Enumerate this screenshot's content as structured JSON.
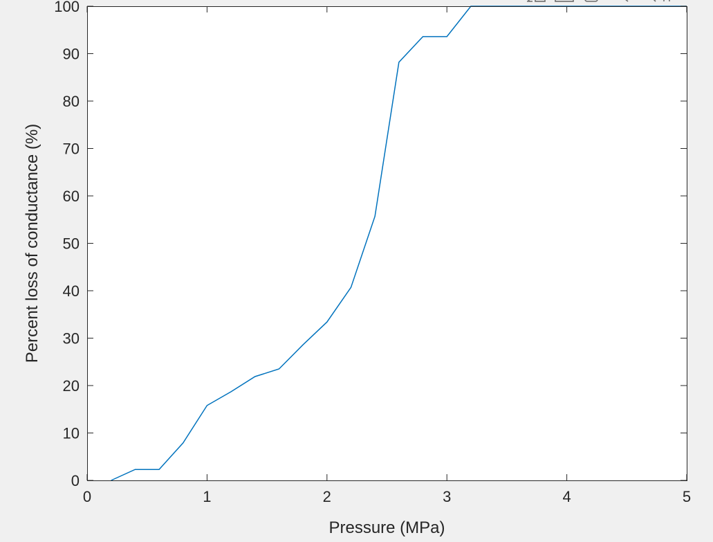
{
  "colors": {
    "figure_background": "#f0f0f0",
    "axes_background": "#ffffff",
    "axes_color": "#262626",
    "series_color": "#0072bd"
  },
  "toolbar": {
    "icons": [
      "data-cursor-icon",
      "save-icon",
      "copy-icon",
      "zoom-in-icon",
      "zoom-out-icon",
      "pan-icon"
    ]
  },
  "chart_data": {
    "type": "line",
    "title": "",
    "xlabel": "Pressure (MPa)",
    "ylabel": "Percent loss of conductance (%)",
    "xlim": [
      0,
      5
    ],
    "ylim": [
      0,
      100
    ],
    "xticks": [
      0,
      1,
      2,
      3,
      4,
      5
    ],
    "yticks": [
      0,
      10,
      20,
      30,
      40,
      50,
      60,
      70,
      80,
      90,
      100
    ],
    "grid": false,
    "legend": "none",
    "series": [
      {
        "x": [
          0.2,
          0.4,
          0.6,
          0.8,
          1.0,
          1.2,
          1.4,
          1.6,
          1.8,
          2.0,
          2.2,
          2.4,
          2.6,
          2.8,
          3.0,
          3.2,
          3.4,
          5.0
        ],
        "y": [
          0,
          2.3,
          2.3,
          7.9,
          15.8,
          18.7,
          21.9,
          23.5,
          28.6,
          33.4,
          40.7,
          55.7,
          88.2,
          93.6,
          93.6,
          100,
          100,
          100
        ]
      }
    ]
  }
}
